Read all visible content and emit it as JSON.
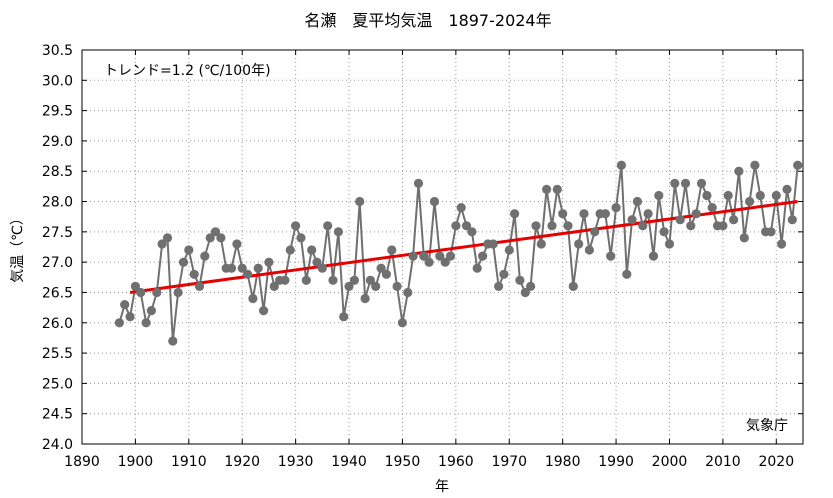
{
  "chart_data": {
    "type": "line",
    "title": "名瀬　夏平均気温　1897-2024年",
    "xlabel": "年",
    "ylabel": "気温（℃）",
    "annotation": "トレンド=1.2 (℃/100年)",
    "source": "気象庁",
    "xlim": [
      1890,
      2025
    ],
    "ylim": [
      24.0,
      30.5
    ],
    "xticks": [
      1890,
      1900,
      1910,
      1920,
      1930,
      1940,
      1950,
      1960,
      1970,
      1980,
      1990,
      2000,
      2010,
      2020
    ],
    "xtick_labels": [
      "1890",
      "1900",
      "1910",
      "1920",
      "1930",
      "1940",
      "1950",
      "1960",
      "1970",
      "1980",
      "1990",
      "2000",
      "2010",
      "2020"
    ],
    "yticks": [
      24.0,
      24.5,
      25.0,
      25.5,
      26.0,
      26.5,
      27.0,
      27.5,
      28.0,
      28.5,
      29.0,
      29.5,
      30.0,
      30.5
    ],
    "ytick_labels": [
      "24.0",
      "24.5",
      "25.0",
      "25.5",
      "26.0",
      "26.5",
      "27.0",
      "27.5",
      "28.0",
      "28.5",
      "29.0",
      "29.5",
      "30.0",
      "30.5"
    ],
    "grid": true,
    "colors": {
      "series": "#707070",
      "trend": "#e60000",
      "grid": "#9a9a9a"
    },
    "series": [
      {
        "x_start": 1897,
        "x_end": 2024,
        "values": [
          26.0,
          26.3,
          26.1,
          26.6,
          26.5,
          26.0,
          26.2,
          26.5,
          27.3,
          27.4,
          25.7,
          26.5,
          27.0,
          27.2,
          26.8,
          26.6,
          27.1,
          27.4,
          27.5,
          27.4,
          26.9,
          26.9,
          27.3,
          26.9,
          26.8,
          26.4,
          26.9,
          26.2,
          27.0,
          26.6,
          26.7,
          26.7,
          27.2,
          27.6,
          27.4,
          26.7,
          27.2,
          27.0,
          26.9,
          27.6,
          26.7,
          27.5,
          26.1,
          26.6,
          26.7,
          28.0,
          26.4,
          26.7,
          26.6,
          26.9,
          26.8,
          27.2,
          26.6,
          26.0,
          26.5,
          27.1,
          28.3,
          27.1,
          27.0,
          28.0,
          27.1,
          27.0,
          27.1,
          27.6,
          27.9,
          27.6,
          27.5,
          26.9,
          27.1,
          27.3,
          27.3,
          26.6,
          26.8,
          27.2,
          27.8,
          26.7,
          26.5,
          26.6,
          27.6,
          27.3,
          28.2,
          27.6,
          28.2,
          27.8,
          27.6,
          26.6,
          27.3,
          27.8,
          27.2,
          27.5,
          27.8,
          27.8,
          27.1,
          27.9,
          28.6,
          26.8,
          27.7,
          28.0,
          27.6,
          27.8,
          27.1,
          28.1,
          27.5,
          27.3,
          28.3,
          27.7,
          28.3,
          27.6,
          27.8,
          28.3,
          28.1,
          27.9,
          27.6,
          27.6,
          28.1,
          27.7,
          28.5,
          27.4,
          28.0,
          28.6,
          28.1,
          27.5,
          27.5,
          28.1,
          27.3,
          28.2,
          27.7,
          28.6
        ]
      },
      {
        "trend_from": [
          1899,
          26.5
        ],
        "trend_to": [
          2024,
          28.0
        ]
      }
    ]
  }
}
